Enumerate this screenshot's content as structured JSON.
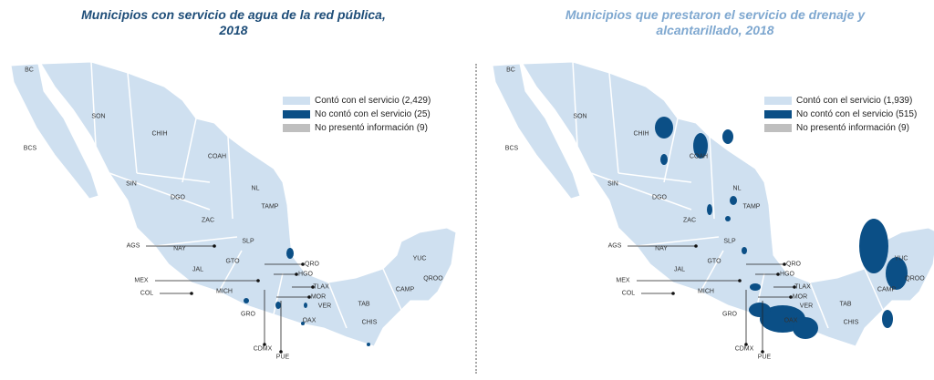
{
  "colors": {
    "served": "#cfe0f0",
    "not_served": "#0b4f86",
    "no_info": "#bfbfbf",
    "border": "#ffffff"
  },
  "maps": [
    {
      "title_line1": "Municipios con servicio de agua de la red pública,",
      "title_line2": "2018",
      "legend": [
        "Contó con el servicio (2,429)",
        "No contó con el servicio (25)",
        "No presentó información (9)"
      ]
    },
    {
      "title_line1": "Municipios que prestaron el servicio de drenaje y",
      "title_line2": "alcantarillado, 2018",
      "legend": [
        "Contó con el servicio (1,939)",
        "No contó con el servicio (515)",
        "No presentó información (9)"
      ]
    }
  ],
  "states": [
    "BC",
    "BCS",
    "SON",
    "CHIH",
    "COAH",
    "SIN",
    "DGO",
    "NL",
    "TAMP",
    "ZAC",
    "SLP",
    "AGS",
    "NAY",
    "JAL",
    "GTO",
    "QRO",
    "HGO",
    "MEX",
    "COL",
    "MICH",
    "TLAX",
    "MOR",
    "VER",
    "GRO",
    "OAX",
    "CDMX",
    "PUE",
    "TAB",
    "CHIS",
    "CAMP",
    "YUC",
    "QROO"
  ]
}
